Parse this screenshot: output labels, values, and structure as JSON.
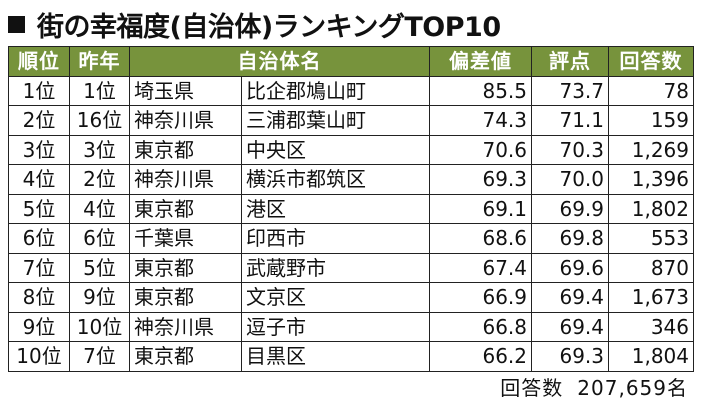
{
  "title": {
    "text": "街の幸福度(自治体)ランキングTOP10"
  },
  "table": {
    "headers": {
      "rank": "順位",
      "prev": "昨年",
      "municipality": "自治体名",
      "deviation": "偏差値",
      "score": "評点",
      "respondents": "回答数"
    },
    "rows": [
      {
        "rank": "1位",
        "prev": "1位",
        "pref": "埼玉県",
        "city": "比企郡鳩山町",
        "deviation": "85.5",
        "score": "73.7",
        "count": "78"
      },
      {
        "rank": "2位",
        "prev": "16位",
        "pref": "神奈川県",
        "city": "三浦郡葉山町",
        "deviation": "74.3",
        "score": "71.1",
        "count": "159"
      },
      {
        "rank": "3位",
        "prev": "3位",
        "pref": "東京都",
        "city": "中央区",
        "deviation": "70.6",
        "score": "70.3",
        "count": "1,269"
      },
      {
        "rank": "4位",
        "prev": "2位",
        "pref": "神奈川県",
        "city": "横浜市都筑区",
        "deviation": "69.3",
        "score": "70.0",
        "count": "1,396"
      },
      {
        "rank": "5位",
        "prev": "4位",
        "pref": "東京都",
        "city": "港区",
        "deviation": "69.1",
        "score": "69.9",
        "count": "1,802"
      },
      {
        "rank": "6位",
        "prev": "6位",
        "pref": "千葉県",
        "city": "印西市",
        "deviation": "68.6",
        "score": "69.8",
        "count": "553"
      },
      {
        "rank": "7位",
        "prev": "5位",
        "pref": "東京都",
        "city": "武蔵野市",
        "deviation": "67.4",
        "score": "69.6",
        "count": "870"
      },
      {
        "rank": "8位",
        "prev": "9位",
        "pref": "東京都",
        "city": "文京区",
        "deviation": "66.9",
        "score": "69.4",
        "count": "1,673"
      },
      {
        "rank": "9位",
        "prev": "10位",
        "pref": "神奈川県",
        "city": "逗子市",
        "deviation": "66.8",
        "score": "69.4",
        "count": "346"
      },
      {
        "rank": "10位",
        "prev": "7位",
        "pref": "東京都",
        "city": "目黒区",
        "deviation": "66.2",
        "score": "69.3",
        "count": "1,804"
      }
    ]
  },
  "footer": {
    "label": "回答数",
    "value": "207,659名"
  },
  "colors": {
    "header_bg": "#77933c",
    "header_text": "#ffffff",
    "text": "#111111"
  }
}
